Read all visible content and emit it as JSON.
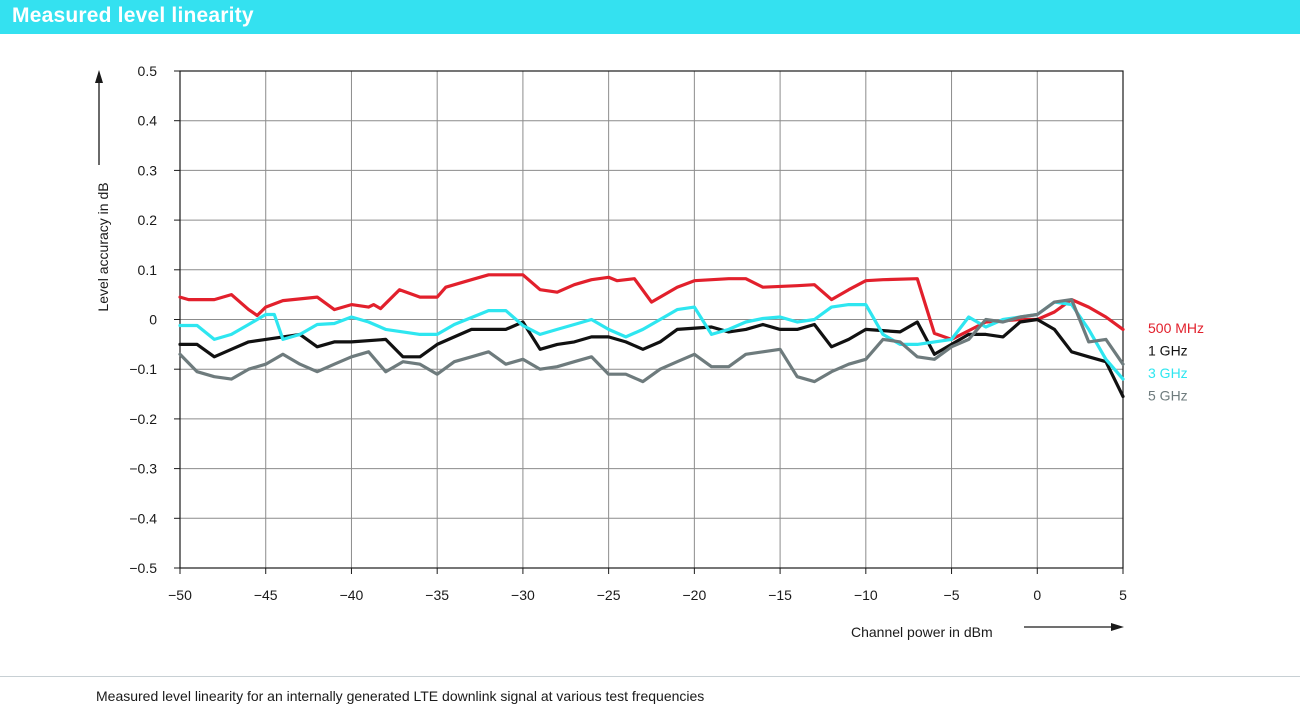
{
  "header": {
    "title": "Measured level linearity"
  },
  "caption": "Measured level linearity for an internally generated LTE downlink signal at various test frequencies",
  "chart_data": {
    "type": "line",
    "title": "Measured level linearity",
    "xlabel": "Channel power in dBm",
    "ylabel": "Level accuracy in dB",
    "xlim": [
      -50,
      5
    ],
    "ylim": [
      -0.5,
      0.5
    ],
    "x_ticks": [
      -50,
      -45,
      -40,
      -35,
      -30,
      -25,
      -20,
      -15,
      -10,
      -5,
      0,
      5
    ],
    "x_tick_labels": [
      "−50",
      "−45",
      "−40",
      "−35",
      "−30",
      "−25",
      "−20",
      "−15",
      "−10",
      "−5",
      "0",
      "5"
    ],
    "y_ticks": [
      0.5,
      0.4,
      0.3,
      0.2,
      0.1,
      0,
      -0.1,
      -0.2,
      -0.3,
      -0.4,
      -0.5
    ],
    "y_tick_labels": [
      "0.5",
      "0.4",
      "0.3",
      "0.2",
      "0.1",
      "0",
      "−0.1",
      "−0.2",
      "−0.3",
      "−0.4",
      "−0.5"
    ],
    "grid": true,
    "legend": "right",
    "series": [
      {
        "name": "500 MHz",
        "color": "#e2202c",
        "points": [
          [
            -50,
            0.045
          ],
          [
            -49.5,
            0.04
          ],
          [
            -48,
            0.04
          ],
          [
            -47,
            0.05
          ],
          [
            -46,
            0.02
          ],
          [
            -45.5,
            0.008
          ],
          [
            -45,
            0.025
          ],
          [
            -44,
            0.038
          ],
          [
            -42,
            0.045
          ],
          [
            -41,
            0.02
          ],
          [
            -40,
            0.03
          ],
          [
            -39,
            0.025
          ],
          [
            -38.7,
            0.03
          ],
          [
            -38.3,
            0.022
          ],
          [
            -37.2,
            0.06
          ],
          [
            -36,
            0.045
          ],
          [
            -35,
            0.045
          ],
          [
            -34.5,
            0.065
          ],
          [
            -33,
            0.08
          ],
          [
            -32,
            0.09
          ],
          [
            -30,
            0.09
          ],
          [
            -29,
            0.06
          ],
          [
            -28,
            0.055
          ],
          [
            -27,
            0.07
          ],
          [
            -26,
            0.08
          ],
          [
            -25,
            0.085
          ],
          [
            -24.5,
            0.078
          ],
          [
            -23.5,
            0.082
          ],
          [
            -22.5,
            0.035
          ],
          [
            -21,
            0.065
          ],
          [
            -20,
            0.078
          ],
          [
            -18,
            0.082
          ],
          [
            -17,
            0.082
          ],
          [
            -16,
            0.065
          ],
          [
            -14,
            0.068
          ],
          [
            -13,
            0.07
          ],
          [
            -12,
            0.04
          ],
          [
            -11,
            0.06
          ],
          [
            -10,
            0.078
          ],
          [
            -9,
            0.08
          ],
          [
            -7,
            0.082
          ],
          [
            -6,
            -0.028
          ],
          [
            -5,
            -0.04
          ],
          [
            -3,
            -0.005
          ],
          [
            -1,
            0.0
          ],
          [
            0,
            0.0
          ],
          [
            1,
            0.015
          ],
          [
            2,
            0.04
          ],
          [
            3,
            0.025
          ],
          [
            4,
            0.005
          ],
          [
            5,
            -0.02
          ]
        ]
      },
      {
        "name": "1 GHz",
        "color": "#111111",
        "points": [
          [
            -50,
            -0.05
          ],
          [
            -49,
            -0.05
          ],
          [
            -48,
            -0.075
          ],
          [
            -47,
            -0.06
          ],
          [
            -46,
            -0.045
          ],
          [
            -45,
            -0.04
          ],
          [
            -44,
            -0.035
          ],
          [
            -43,
            -0.03
          ],
          [
            -42,
            -0.055
          ],
          [
            -41,
            -0.045
          ],
          [
            -40,
            -0.045
          ],
          [
            -38,
            -0.04
          ],
          [
            -37,
            -0.075
          ],
          [
            -36,
            -0.075
          ],
          [
            -35,
            -0.05
          ],
          [
            -34,
            -0.035
          ],
          [
            -33,
            -0.02
          ],
          [
            -31,
            -0.02
          ],
          [
            -30,
            -0.005
          ],
          [
            -29,
            -0.06
          ],
          [
            -28,
            -0.05
          ],
          [
            -27,
            -0.045
          ],
          [
            -26,
            -0.035
          ],
          [
            -25,
            -0.035
          ],
          [
            -24,
            -0.045
          ],
          [
            -23,
            -0.06
          ],
          [
            -22,
            -0.045
          ],
          [
            -21,
            -0.02
          ],
          [
            -19,
            -0.015
          ],
          [
            -18,
            -0.025
          ],
          [
            -17,
            -0.02
          ],
          [
            -16,
            -0.01
          ],
          [
            -15,
            -0.02
          ],
          [
            -14,
            -0.02
          ],
          [
            -13,
            -0.01
          ],
          [
            -12,
            -0.055
          ],
          [
            -11,
            -0.04
          ],
          [
            -10,
            -0.02
          ],
          [
            -8,
            -0.025
          ],
          [
            -7,
            -0.005
          ],
          [
            -6,
            -0.07
          ],
          [
            -5,
            -0.05
          ],
          [
            -4,
            -0.03
          ],
          [
            -3,
            -0.03
          ],
          [
            -2,
            -0.035
          ],
          [
            -1,
            -0.005
          ],
          [
            0,
            0.0
          ],
          [
            1,
            -0.02
          ],
          [
            2,
            -0.065
          ],
          [
            3,
            -0.075
          ],
          [
            4,
            -0.085
          ],
          [
            5,
            -0.155
          ]
        ]
      },
      {
        "name": "3 GHz",
        "color": "#2ee6f0",
        "points": [
          [
            -50,
            -0.012
          ],
          [
            -49,
            -0.012
          ],
          [
            -48,
            -0.04
          ],
          [
            -47,
            -0.03
          ],
          [
            -46,
            -0.01
          ],
          [
            -45,
            0.01
          ],
          [
            -44.5,
            0.01
          ],
          [
            -44,
            -0.04
          ],
          [
            -43,
            -0.03
          ],
          [
            -42,
            -0.01
          ],
          [
            -41,
            -0.008
          ],
          [
            -40,
            0.005
          ],
          [
            -39,
            -0.005
          ],
          [
            -38,
            -0.02
          ],
          [
            -37,
            -0.025
          ],
          [
            -36,
            -0.03
          ],
          [
            -35,
            -0.03
          ],
          [
            -34,
            -0.01
          ],
          [
            -32,
            0.018
          ],
          [
            -31,
            0.018
          ],
          [
            -30,
            -0.012
          ],
          [
            -29,
            -0.03
          ],
          [
            -28,
            -0.02
          ],
          [
            -27,
            -0.01
          ],
          [
            -26,
            0.0
          ],
          [
            -25,
            -0.02
          ],
          [
            -24,
            -0.035
          ],
          [
            -23,
            -0.02
          ],
          [
            -22,
            0.0
          ],
          [
            -21,
            0.02
          ],
          [
            -20,
            0.025
          ],
          [
            -19,
            -0.03
          ],
          [
            -18,
            -0.02
          ],
          [
            -17,
            -0.005
          ],
          [
            -16,
            0.002
          ],
          [
            -15,
            0.005
          ],
          [
            -14,
            -0.005
          ],
          [
            -13,
            0.0
          ],
          [
            -12,
            0.025
          ],
          [
            -11,
            0.03
          ],
          [
            -10,
            0.03
          ],
          [
            -9,
            -0.03
          ],
          [
            -8,
            -0.05
          ],
          [
            -7,
            -0.05
          ],
          [
            -6,
            -0.045
          ],
          [
            -5,
            -0.04
          ],
          [
            -4,
            0.005
          ],
          [
            -3,
            -0.015
          ],
          [
            -2,
            0.0
          ],
          [
            -1,
            0.005
          ],
          [
            0,
            0.01
          ],
          [
            1,
            0.035
          ],
          [
            2,
            0.03
          ],
          [
            3,
            -0.02
          ],
          [
            4,
            -0.08
          ],
          [
            5,
            -0.12
          ]
        ]
      },
      {
        "name": "5 GHz",
        "color": "#6e7b7d",
        "points": [
          [
            -50,
            -0.07
          ],
          [
            -49,
            -0.105
          ],
          [
            -48,
            -0.115
          ],
          [
            -47,
            -0.12
          ],
          [
            -46,
            -0.1
          ],
          [
            -45,
            -0.09
          ],
          [
            -44,
            -0.07
          ],
          [
            -43,
            -0.09
          ],
          [
            -42,
            -0.105
          ],
          [
            -41,
            -0.09
          ],
          [
            -40,
            -0.075
          ],
          [
            -39,
            -0.065
          ],
          [
            -38,
            -0.105
          ],
          [
            -37,
            -0.085
          ],
          [
            -36,
            -0.09
          ],
          [
            -35,
            -0.11
          ],
          [
            -34,
            -0.085
          ],
          [
            -33,
            -0.075
          ],
          [
            -32,
            -0.065
          ],
          [
            -31,
            -0.09
          ],
          [
            -30,
            -0.08
          ],
          [
            -29,
            -0.1
          ],
          [
            -28,
            -0.095
          ],
          [
            -27,
            -0.085
          ],
          [
            -26,
            -0.075
          ],
          [
            -25,
            -0.11
          ],
          [
            -24,
            -0.11
          ],
          [
            -23,
            -0.125
          ],
          [
            -22,
            -0.1
          ],
          [
            -21,
            -0.085
          ],
          [
            -20,
            -0.07
          ],
          [
            -19,
            -0.095
          ],
          [
            -18,
            -0.095
          ],
          [
            -17,
            -0.07
          ],
          [
            -16,
            -0.065
          ],
          [
            -15,
            -0.06
          ],
          [
            -14,
            -0.115
          ],
          [
            -13,
            -0.125
          ],
          [
            -12,
            -0.105
          ],
          [
            -11,
            -0.09
          ],
          [
            -10,
            -0.08
          ],
          [
            -9,
            -0.04
          ],
          [
            -8,
            -0.045
          ],
          [
            -7,
            -0.075
          ],
          [
            -6,
            -0.08
          ],
          [
            -5,
            -0.055
          ],
          [
            -4,
            -0.04
          ],
          [
            -3,
            0.0
          ],
          [
            -2,
            -0.005
          ],
          [
            -1,
            0.005
          ],
          [
            0,
            0.01
          ],
          [
            1,
            0.035
          ],
          [
            2,
            0.04
          ],
          [
            3,
            -0.045
          ],
          [
            4,
            -0.04
          ],
          [
            5,
            -0.09
          ]
        ]
      }
    ]
  }
}
